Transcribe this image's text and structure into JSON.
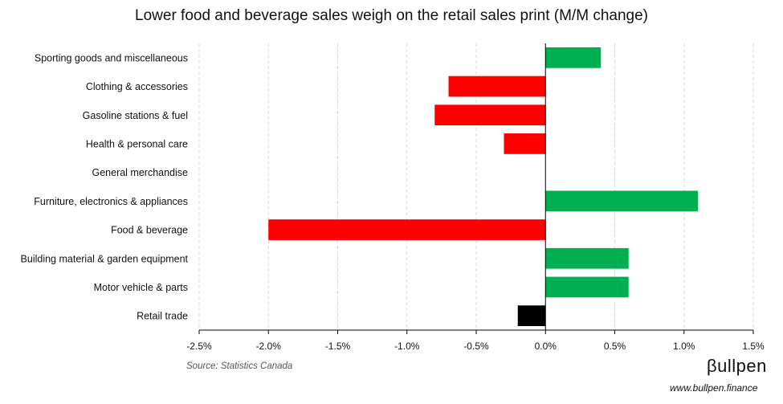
{
  "chart_data": {
    "type": "bar",
    "orientation": "horizontal",
    "title": "Lower food and beverage sales weigh on the retail sales print (M/M change)",
    "categories": [
      "Sporting goods and miscellaneous",
      "Clothing & accessories",
      "Gasoline stations & fuel",
      "Health & personal care",
      "General merchandise",
      "Furniture, electronics & appliances",
      "Food & beverage",
      "Building material & garden equipment",
      "Motor vehicle & parts",
      "Retail trade"
    ],
    "values": [
      0.4,
      -0.7,
      -0.8,
      -0.3,
      0.0,
      1.1,
      -2.0,
      0.6,
      0.6,
      -0.2
    ],
    "colors": [
      "#00b050",
      "#ff0000",
      "#ff0000",
      "#ff0000",
      "#000000",
      "#00b050",
      "#ff0000",
      "#00b050",
      "#00b050",
      "#000000"
    ],
    "xlim": [
      -2.5,
      1.5
    ],
    "xticks": [
      -2.5,
      -2.0,
      -1.5,
      -1.0,
      -0.5,
      0.0,
      0.5,
      1.0,
      1.5
    ],
    "xtick_labels": [
      "-2.5%",
      "-2.0%",
      "-1.5%",
      "-1.0%",
      "-0.5%",
      "0.0%",
      "0.5%",
      "1.0%",
      "1.5%"
    ],
    "xlabel": "",
    "ylabel": "",
    "grid": "vertical dashed"
  },
  "source": "Source: Statistics Canada",
  "brand": {
    "logo": "βullpen",
    "url": "www.bullpen.finance"
  },
  "colors": {
    "positive": "#00b050",
    "negative": "#ff0000",
    "total": "#000000",
    "grid": "#d9d9d9",
    "axis": "#000000"
  }
}
